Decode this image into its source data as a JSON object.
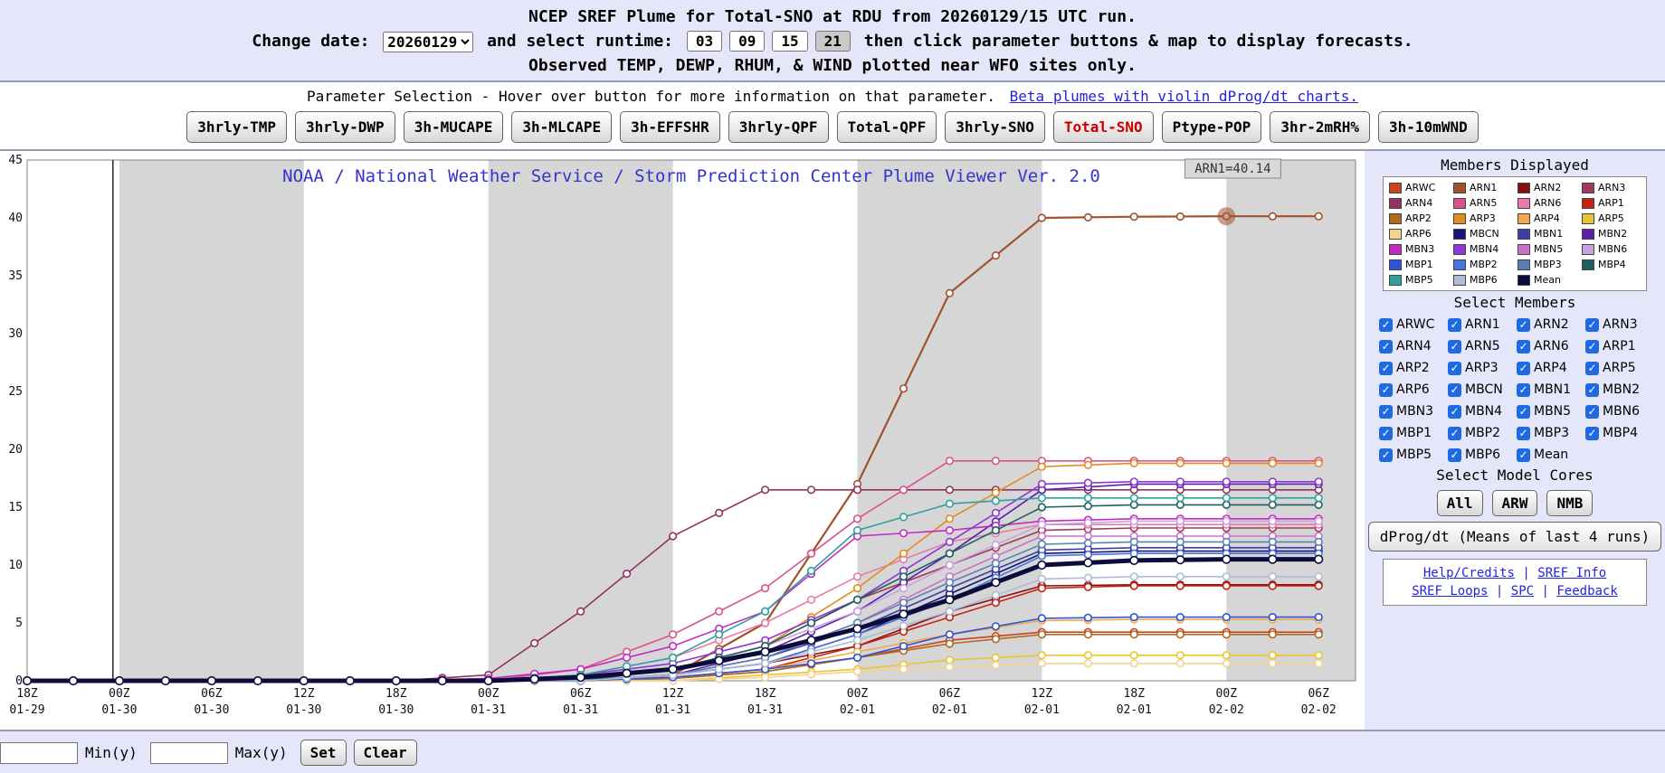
{
  "header": {
    "title": "NCEP SREF Plume for Total-SNO at RDU from 20260129/15 UTC run.",
    "change_date_label": "Change date:",
    "date_value": "20260129",
    "runtime_label": "and select runtime:",
    "runtimes": [
      "03",
      "09",
      "15",
      "21"
    ],
    "runtime_highlighted": "21",
    "runtime_suffix": "then click parameter buttons & map to display forecasts.",
    "observed_note": "Observed TEMP, DEWP, RHUM, & WIND plotted near WFO sites only."
  },
  "param_bar": {
    "info_text": "Parameter Selection - Hover over button for more information on that parameter.",
    "beta_link": "Beta plumes with violin dProg/dt charts.",
    "buttons": [
      "3hrly-TMP",
      "3hrly-DWP",
      "3h-MUCAPE",
      "3h-MLCAPE",
      "3h-EFFSHR",
      "3hrly-QPF",
      "Total-QPF",
      "3hrly-SNO",
      "Total-SNO",
      "Ptype-POP",
      "3hr-2mRH%",
      "3h-10mWND"
    ],
    "active_button": "Total-SNO",
    "active_color": "#cc0000"
  },
  "sidebar": {
    "members_displayed_title": "Members Displayed",
    "select_members_title": "Select Members",
    "select_cores_title": "Select Model Cores",
    "members": [
      {
        "name": "ARWC",
        "color": "#c8431f"
      },
      {
        "name": "ARN1",
        "color": "#a0522d"
      },
      {
        "name": "ARN2",
        "color": "#8b0f0f"
      },
      {
        "name": "ARN3",
        "color": "#a03a5a"
      },
      {
        "name": "ARN4",
        "color": "#92335f"
      },
      {
        "name": "ARN5",
        "color": "#d8538f"
      },
      {
        "name": "ARN6",
        "color": "#e87ba8"
      },
      {
        "name": "ARP1",
        "color": "#c42313"
      },
      {
        "name": "ARP2",
        "color": "#b06a1e"
      },
      {
        "name": "ARP3",
        "color": "#e58a1f"
      },
      {
        "name": "ARP4",
        "color": "#f2a74e"
      },
      {
        "name": "ARP5",
        "color": "#e8c52e"
      },
      {
        "name": "ARP6",
        "color": "#f4d391"
      },
      {
        "name": "MBCN",
        "color": "#15157a"
      },
      {
        "name": "MBN1",
        "color": "#3d3da5"
      },
      {
        "name": "MBN2",
        "color": "#5c1fa8"
      },
      {
        "name": "MBN3",
        "color": "#c32ac3"
      },
      {
        "name": "MBN4",
        "color": "#8f37d4"
      },
      {
        "name": "MBN5",
        "color": "#c873c8"
      },
      {
        "name": "MBN6",
        "color": "#c9a2e2"
      },
      {
        "name": "MBP1",
        "color": "#2f55d4"
      },
      {
        "name": "MBP2",
        "color": "#4775dc"
      },
      {
        "name": "MBP3",
        "color": "#5a7fb4"
      },
      {
        "name": "MBP4",
        "color": "#1e6060"
      },
      {
        "name": "MBP5",
        "color": "#2fa0a0"
      },
      {
        "name": "MBP6",
        "color": "#aebdd6"
      },
      {
        "name": "Mean",
        "color": "#0b0b3c"
      }
    ],
    "core_buttons": [
      "All",
      "ARW",
      "NMB"
    ],
    "dprog_button": "dProg/dt (Means of last 4 runs)",
    "links_line1": [
      "Help/Credits",
      "SREF Info"
    ],
    "links_line2": [
      "SREF Loops",
      "SPC",
      "Feedback"
    ]
  },
  "footer": {
    "min_value": "",
    "min_label": "Min(y)",
    "max_value": "",
    "max_label": "Max(y)",
    "set_button": "Set",
    "clear_button": "Clear"
  },
  "chart_data": {
    "type": "line",
    "title": "NOAA / National Weather Service / Storm Prediction Center Plume Viewer Ver. 2.0",
    "title_color": "#3333cc",
    "tooltip": "ARN1=40.14",
    "ylim": [
      0,
      45
    ],
    "ytick_labels": [
      0,
      5,
      10,
      15,
      20,
      25,
      30,
      35,
      40,
      45
    ],
    "x_tick_labels_time": [
      "18Z",
      "00Z",
      "06Z",
      "12Z",
      "18Z",
      "00Z",
      "06Z",
      "12Z",
      "18Z",
      "00Z",
      "06Z",
      "12Z",
      "18Z",
      "00Z",
      "06Z"
    ],
    "x_tick_labels_date": [
      "01-29",
      "01-30",
      "01-30",
      "01-30",
      "01-30",
      "01-31",
      "01-31",
      "01-31",
      "01-31",
      "02-01",
      "02-01",
      "02-01",
      "02-01",
      "02-02",
      "02-02"
    ],
    "x_extend": 14.4,
    "shaded_bands": [
      [
        1,
        3
      ],
      [
        5,
        7
      ],
      [
        9,
        11
      ],
      [
        13,
        14.4
      ]
    ],
    "band_color": "#d6d6d6",
    "now_line_x": 0.93,
    "legend_position": "right-panel",
    "grid": false,
    "highlight": {
      "series": "ARN1",
      "x_index": 13,
      "value": 40.14
    },
    "series": [
      {
        "name": "ARWC",
        "values": [
          0,
          0,
          0,
          0,
          0,
          0,
          0,
          0.2,
          0.8,
          2,
          3.5,
          4.2,
          4.2,
          4.2,
          4.2
        ]
      },
      {
        "name": "ARN1",
        "values": [
          0,
          0,
          0,
          0,
          0,
          0,
          0,
          0.5,
          5,
          17,
          33.5,
          40,
          40.1,
          40.14,
          40.14
        ]
      },
      {
        "name": "ARN2",
        "values": [
          0,
          0,
          0,
          0,
          0,
          0,
          0,
          0.5,
          1.5,
          3,
          6,
          8.2,
          8.3,
          8.3,
          8.3
        ]
      },
      {
        "name": "ARN3",
        "values": [
          0,
          0,
          0,
          0,
          0,
          0,
          0,
          1,
          3,
          7,
          10,
          13,
          13.2,
          13.2,
          13.2
        ]
      },
      {
        "name": "ARN4",
        "values": [
          0,
          0,
          0,
          0,
          0,
          0.5,
          6,
          12.5,
          16.5,
          16.5,
          16.5,
          16.5,
          16.5,
          16.5,
          16.5
        ]
      },
      {
        "name": "ARN5",
        "values": [
          0,
          0,
          0,
          0,
          0,
          0,
          1,
          4,
          8,
          14,
          19,
          19,
          19,
          19,
          19
        ]
      },
      {
        "name": "ARN6",
        "values": [
          0,
          0,
          0,
          0,
          0,
          0,
          0.5,
          2,
          5,
          9,
          12,
          13.5,
          13.5,
          13.5,
          13.5
        ]
      },
      {
        "name": "ARP1",
        "values": [
          0,
          0,
          0,
          0,
          0,
          0,
          0,
          0.3,
          1,
          3,
          5.5,
          8,
          8.2,
          8.2,
          8.2
        ]
      },
      {
        "name": "ARP2",
        "values": [
          0,
          0,
          0,
          0,
          0,
          0,
          0,
          0.2,
          0.8,
          2,
          3.2,
          4,
          4,
          4,
          4
        ]
      },
      {
        "name": "ARP3",
        "values": [
          0,
          0,
          0,
          0,
          0,
          0,
          0,
          1,
          3,
          8,
          14,
          18.5,
          18.8,
          18.8,
          18.8
        ]
      },
      {
        "name": "ARP4",
        "values": [
          0,
          0,
          0,
          0,
          0,
          0,
          0,
          0.3,
          1,
          2.5,
          4,
          5.2,
          5.3,
          5.3,
          5.3
        ]
      },
      {
        "name": "ARP5",
        "values": [
          0,
          0,
          0,
          0,
          0,
          0,
          0,
          0,
          0.5,
          1,
          1.8,
          2.2,
          2.2,
          2.2,
          2.2
        ]
      },
      {
        "name": "ARP6",
        "values": [
          0,
          0,
          0,
          0,
          0,
          0,
          0,
          0,
          0.3,
          0.8,
          1.2,
          1.5,
          1.5,
          1.5,
          1.5
        ]
      },
      {
        "name": "MBCN",
        "values": [
          0,
          0,
          0,
          0,
          0,
          0,
          0,
          0.5,
          1.5,
          4,
          7.5,
          11,
          11.2,
          11.2,
          11.2
        ]
      },
      {
        "name": "MBN1",
        "values": [
          0,
          0,
          0,
          0,
          0,
          0,
          0,
          0.5,
          2,
          4.5,
          8,
          11.3,
          11.5,
          11.5,
          11.5
        ]
      },
      {
        "name": "MBN2",
        "values": [
          0,
          0,
          0,
          0,
          0,
          0,
          0,
          0.5,
          2.5,
          6,
          11,
          16.5,
          17,
          17,
          17
        ]
      },
      {
        "name": "MBN3",
        "values": [
          0,
          0,
          0,
          0,
          0,
          0.2,
          1,
          3,
          6,
          12.5,
          13,
          13.8,
          14,
          14,
          14
        ]
      },
      {
        "name": "MBN4",
        "values": [
          0,
          0,
          0,
          0,
          0,
          0,
          0.5,
          1.5,
          3.5,
          7,
          12,
          17,
          17.2,
          17.2,
          17.2
        ]
      },
      {
        "name": "MBN5",
        "values": [
          0,
          0,
          0,
          0,
          0,
          0,
          0,
          0.5,
          2,
          5,
          9,
          12.5,
          12.5,
          12.5,
          12.5
        ]
      },
      {
        "name": "MBN6",
        "values": [
          0,
          0,
          0,
          0,
          0,
          0,
          0,
          1,
          3,
          6,
          10,
          13.5,
          13.8,
          13.8,
          13.8
        ]
      },
      {
        "name": "MBP1",
        "values": [
          0,
          0,
          0,
          0,
          0,
          0,
          0,
          0.3,
          1,
          2,
          4,
          5.4,
          5.5,
          5.5,
          5.5
        ]
      },
      {
        "name": "MBP2",
        "values": [
          0,
          0,
          0,
          0,
          0,
          0,
          0,
          0.5,
          1.5,
          4,
          7,
          10.8,
          11,
          11,
          11
        ]
      },
      {
        "name": "MBP3",
        "values": [
          0,
          0,
          0,
          0,
          0,
          0,
          0,
          0.5,
          2,
          5,
          8.5,
          11.8,
          12,
          12,
          12
        ]
      },
      {
        "name": "MBP4",
        "values": [
          0,
          0,
          0,
          0,
          0,
          0,
          0,
          1,
          3,
          7,
          11,
          15,
          15.2,
          15.2,
          15.2
        ]
      },
      {
        "name": "MBP5",
        "values": [
          0,
          0,
          0,
          0,
          0,
          0,
          0.5,
          2,
          6,
          13,
          15.3,
          15.8,
          15.8,
          15.8,
          15.8
        ]
      },
      {
        "name": "MBP6",
        "values": [
          0,
          0,
          0,
          0,
          0,
          0,
          0,
          0.5,
          1.5,
          3.5,
          6,
          8.8,
          9,
          9,
          9
        ]
      },
      {
        "name": "Mean",
        "values": [
          0,
          0,
          0,
          0,
          0,
          0,
          0.3,
          1,
          2.5,
          4.5,
          7,
          10,
          10.4,
          10.5,
          10.5
        ]
      }
    ]
  }
}
